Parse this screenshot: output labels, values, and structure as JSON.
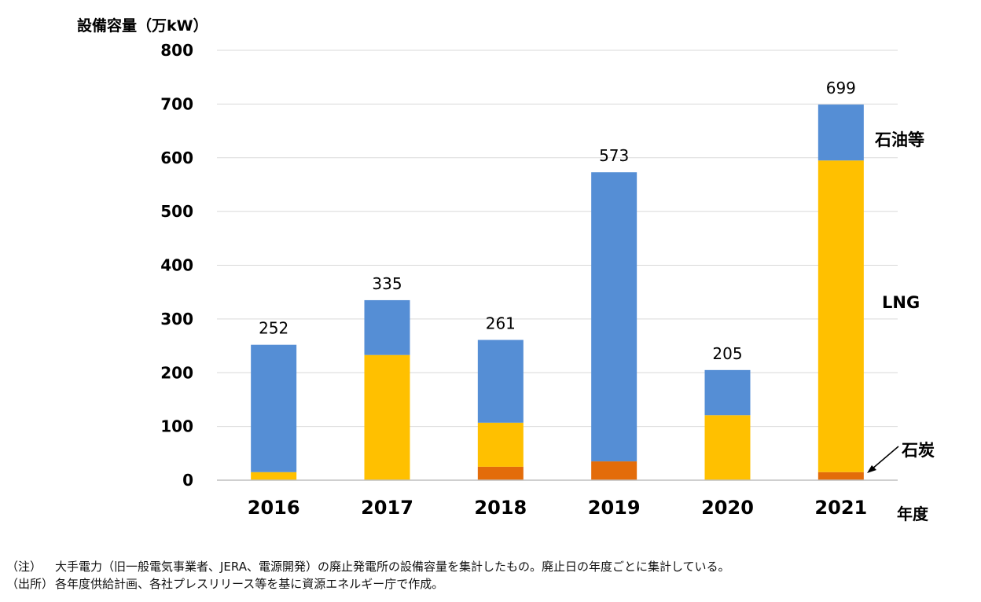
{
  "chart_data": {
    "type": "bar",
    "stacked": true,
    "ylabel": "設備容量（万kW）",
    "xlabel": "年度",
    "ylim": [
      0,
      800
    ],
    "yticks": [
      "0",
      "100",
      "200",
      "300",
      "400",
      "500",
      "600",
      "700",
      "800"
    ],
    "categories": [
      "2016",
      "2017",
      "2018",
      "2019",
      "2020",
      "2021"
    ],
    "series": [
      {
        "name": "石炭",
        "values": [
          0,
          0,
          25,
          35,
          0,
          15
        ],
        "color": "#E36C0A"
      },
      {
        "name": "LNG",
        "values": [
          15,
          233,
          82,
          0,
          121,
          580
        ],
        "color": "#FFC000"
      },
      {
        "name": "石油等",
        "values": [
          237,
          102,
          154,
          538,
          84,
          104
        ],
        "color": "#558ED5"
      }
    ],
    "totals": [
      "252",
      "335",
      "261",
      "573",
      "205",
      "699"
    ],
    "grid": true
  },
  "notes": [
    {
      "label": "（注）",
      "text": "大手電力（旧一般電気事業者、JERA、電源開発）の廃止発電所の設備容量を集計したもの。廃止日の年度ごとに集計している。"
    },
    {
      "label": "（出所）",
      "text": "各年度供給計画、各社プレスリリース等を基に資源エネルギー庁で作成。"
    }
  ]
}
